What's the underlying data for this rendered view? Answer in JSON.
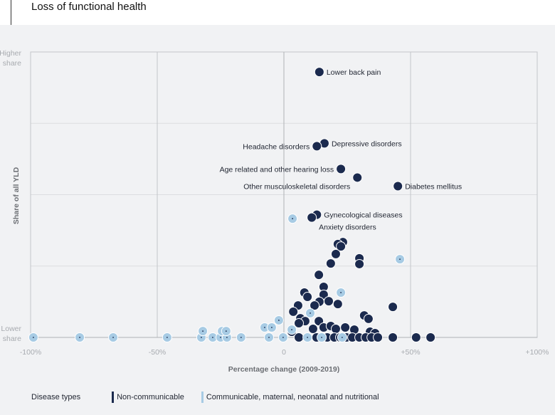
{
  "header": {
    "title": "Loss of functional health"
  },
  "chart_data": {
    "type": "scatter",
    "xlabel": "Percentage change (2009-2019)",
    "ylabel": "Share of all YLD",
    "y_top_label": "Higher share",
    "y_bottom_label": "Lower share",
    "xlim": [
      -100,
      100
    ],
    "ylim": [
      0,
      100
    ],
    "x_ticks": [
      "-100%",
      "-50%",
      "0",
      "+50%",
      "+100%"
    ],
    "x_tick_values": [
      -100,
      -50,
      0,
      50,
      100
    ],
    "grid": true,
    "legend": {
      "title": "Disease types",
      "placement": "bottom-left",
      "entries": [
        "Non-communicable",
        "Communicable, maternal, neonatal and nutritional"
      ]
    },
    "colors": {
      "Non-communicable": "#1b2a4e",
      "Communicable, maternal, neonatal and nutritional": "#a7cbe4"
    },
    "series": [
      {
        "name": "Non-communicable",
        "points": [
          {
            "x": 14,
            "y": 93,
            "label": "Lower back pain"
          },
          {
            "x": 16,
            "y": 68,
            "label": "Depressive disorders"
          },
          {
            "x": 13,
            "y": 67,
            "label": "Headache disorders"
          },
          {
            "x": 22.5,
            "y": 59,
            "label": "Age related and other hearing loss"
          },
          {
            "x": 29,
            "y": 56,
            "label": "Other musculoskeletal disorders"
          },
          {
            "x": 45,
            "y": 53,
            "label": "Diabetes mellitus"
          },
          {
            "x": 13,
            "y": 43,
            "label": "Gynecological diseases"
          },
          {
            "x": 11,
            "y": 42,
            "label": "Anxiety disorders"
          },
          {
            "x": 23.3,
            "y": 33.4
          },
          {
            "x": 21.3,
            "y": 32.7
          },
          {
            "x": 22.5,
            "y": 31.9
          },
          {
            "x": 20.5,
            "y": 29.2
          },
          {
            "x": 18.5,
            "y": 25.9
          },
          {
            "x": 29.8,
            "y": 27.7
          },
          {
            "x": 29.8,
            "y": 25.7
          },
          {
            "x": 13.8,
            "y": 21.9
          },
          {
            "x": 15.7,
            "y": 17.7
          },
          {
            "x": 15.7,
            "y": 15
          },
          {
            "x": 8.1,
            "y": 15.7
          },
          {
            "x": 9.3,
            "y": 14.2
          },
          {
            "x": 17.7,
            "y": 12.7
          },
          {
            "x": 14,
            "y": 12.5
          },
          {
            "x": 12.1,
            "y": 11.2
          },
          {
            "x": 21.3,
            "y": 11.7
          },
          {
            "x": 5.6,
            "y": 11.2
          },
          {
            "x": 3.7,
            "y": 9
          },
          {
            "x": 43,
            "y": 10.7
          },
          {
            "x": 31.7,
            "y": 7.7
          },
          {
            "x": 33.4,
            "y": 6.5
          },
          {
            "x": 6.5,
            "y": 6.7
          },
          {
            "x": 8.4,
            "y": 5.7
          },
          {
            "x": 13.8,
            "y": 5.7
          },
          {
            "x": 5.9,
            "y": 5
          },
          {
            "x": 15.7,
            "y": 3.5
          },
          {
            "x": 18.5,
            "y": 4
          },
          {
            "x": 20.5,
            "y": 3
          },
          {
            "x": 24.2,
            "y": 3.5
          },
          {
            "x": 27.8,
            "y": 2.7
          },
          {
            "x": 34,
            "y": 2
          },
          {
            "x": 36,
            "y": 1.5
          },
          {
            "x": 11.5,
            "y": 3
          },
          {
            "x": 3.1,
            "y": 2
          },
          {
            "x": 5.9,
            "y": 0
          },
          {
            "x": 12.9,
            "y": 0
          },
          {
            "x": 17.1,
            "y": 0
          },
          {
            "x": 19.9,
            "y": 0
          },
          {
            "x": 22.2,
            "y": 0
          },
          {
            "x": 24.7,
            "y": 0
          },
          {
            "x": 27,
            "y": 0
          },
          {
            "x": 29.8,
            "y": 0
          },
          {
            "x": 32.3,
            "y": 0
          },
          {
            "x": 34.6,
            "y": 0
          },
          {
            "x": 37.1,
            "y": 0
          },
          {
            "x": 43,
            "y": 0
          },
          {
            "x": 52.2,
            "y": 0
          },
          {
            "x": 57.9,
            "y": 0
          }
        ]
      },
      {
        "name": "Communicable, maternal, neonatal and nutritional",
        "points": [
          {
            "x": 3.4,
            "y": 41.6
          },
          {
            "x": 45.8,
            "y": 27.4
          },
          {
            "x": 22.5,
            "y": 15.7
          },
          {
            "x": 10.4,
            "y": 8.5
          },
          {
            "x": -2,
            "y": 6
          },
          {
            "x": -7.6,
            "y": 3.5
          },
          {
            "x": -4.8,
            "y": 3.5
          },
          {
            "x": 3.1,
            "y": 2.7
          },
          {
            "x": -5.9,
            "y": 0
          },
          {
            "x": -0.3,
            "y": 0
          },
          {
            "x": 9.3,
            "y": 0
          },
          {
            "x": 14.9,
            "y": 0
          },
          {
            "x": 23,
            "y": 0
          },
          {
            "x": -98.9,
            "y": 0
          },
          {
            "x": -80.6,
            "y": 0
          },
          {
            "x": -67.4,
            "y": 0
          },
          {
            "x": -46.1,
            "y": 0
          },
          {
            "x": -32.6,
            "y": 0
          },
          {
            "x": -28.1,
            "y": 0
          },
          {
            "x": -25,
            "y": 0
          },
          {
            "x": -22.5,
            "y": 0
          },
          {
            "x": -16.9,
            "y": 0
          },
          {
            "x": -32,
            "y": 2.2
          },
          {
            "x": -24.4,
            "y": 2.2
          },
          {
            "x": -22.8,
            "y": 2.2
          }
        ]
      }
    ]
  }
}
